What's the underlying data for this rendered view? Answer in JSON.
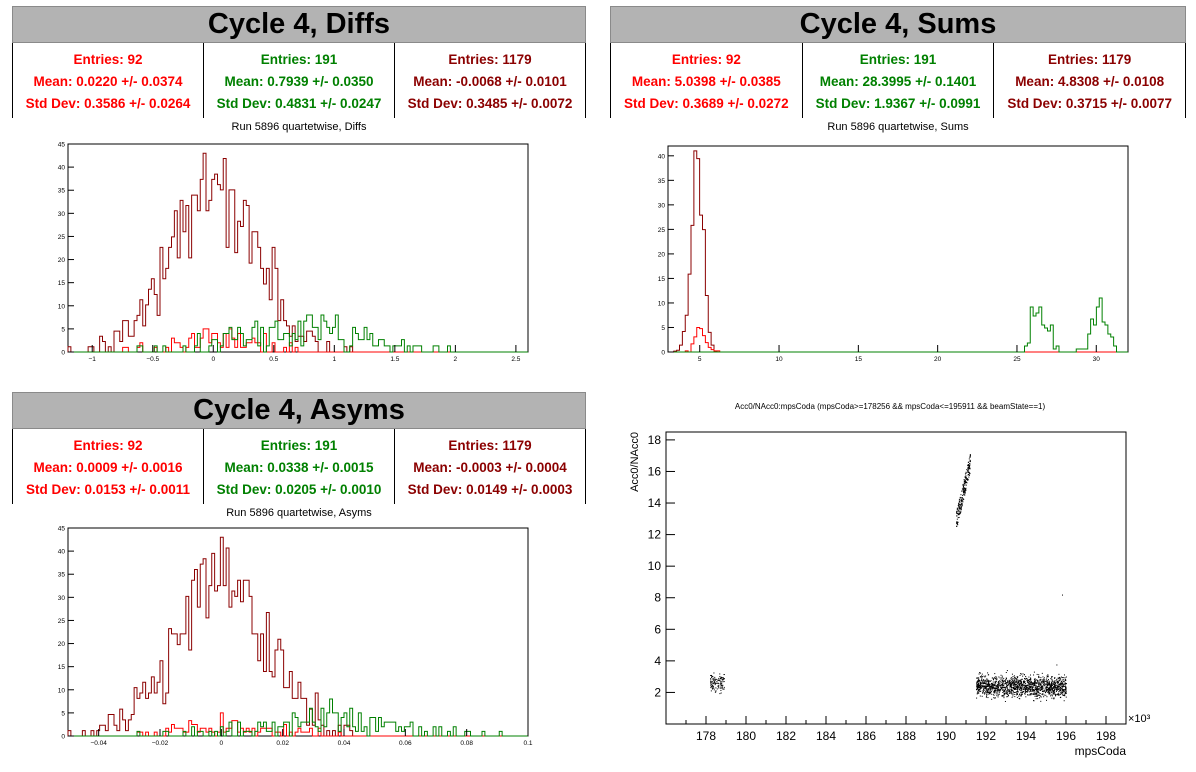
{
  "colors": {
    "red": "#ff0000",
    "green": "#008000",
    "darkred": "#8b0000"
  },
  "panels": [
    {
      "id": "diffs",
      "title": "Cycle 4, Diffs",
      "subtitle": "Run 5896 quartetwise, Diffs",
      "stats": [
        {
          "color": "#ff0000",
          "entries": "Entries: 92",
          "mean": "Mean: 0.0220 +/- 0.0374",
          "std": "Std Dev: 0.3586 +/- 0.0264"
        },
        {
          "color": "#008000",
          "entries": "Entries: 191",
          "mean": "Mean: 0.7939 +/- 0.0350",
          "std": "Std Dev: 0.4831 +/- 0.0247"
        },
        {
          "color": "#8b0000",
          "entries": "Entries: 1179",
          "mean": "Mean: -0.0068 +/- 0.0101",
          "std": "Std Dev: 0.3485 +/- 0.0072"
        }
      ]
    },
    {
      "id": "sums",
      "title": "Cycle 4, Sums",
      "subtitle": "Run 5896 quartetwise, Sums",
      "stats": [
        {
          "color": "#ff0000",
          "entries": "Entries: 92",
          "mean": "Mean: 5.0398 +/- 0.0385",
          "std": "Std Dev: 0.3689 +/- 0.0272"
        },
        {
          "color": "#008000",
          "entries": "Entries: 191",
          "mean": "Mean: 28.3995 +/- 0.1401",
          "std": "Std Dev: 1.9367 +/- 0.0991"
        },
        {
          "color": "#8b0000",
          "entries": "Entries: 1179",
          "mean": "Mean: 4.8308 +/- 0.0108",
          "std": "Std Dev: 0.3715 +/- 0.0077"
        }
      ]
    },
    {
      "id": "asyms",
      "title": "Cycle 4, Asyms",
      "subtitle": "Run 5896 quartetwise, Asyms",
      "stats": [
        {
          "color": "#ff0000",
          "entries": "Entries: 92",
          "mean": "Mean: 0.0009 +/- 0.0016",
          "std": "Std Dev: 0.0153 +/- 0.0011"
        },
        {
          "color": "#008000",
          "entries": "Entries: 191",
          "mean": "Mean: 0.0338 +/- 0.0015",
          "std": "Std Dev: 0.0205 +/- 0.0010"
        },
        {
          "color": "#8b0000",
          "entries": "Entries: 1179",
          "mean": "Mean: -0.0003 +/- 0.0004",
          "std": "Std Dev: 0.0149 +/- 0.0003"
        }
      ]
    }
  ],
  "scatter_title": "Acc0/NAcc0:mpsCoda (mpsCoda>=178256 && mpsCoda<=195911 && beamState==1)",
  "chart_data": [
    {
      "id": "diffs",
      "type": "histogram",
      "xlim": [
        -1.2,
        2.6
      ],
      "ylim": [
        0,
        45
      ],
      "xticks": [
        -1,
        -0.5,
        0,
        0.5,
        1,
        1.5,
        2,
        2.5
      ],
      "xtick_labels": [
        "−1",
        "−0.5",
        "0",
        "0.5",
        "1",
        "1.5",
        "2",
        "2.5"
      ],
      "yticks": [
        0,
        5,
        10,
        15,
        20,
        25,
        30,
        35,
        40,
        45
      ],
      "series": [
        {
          "color": "#8b0000",
          "count": 1179,
          "mean": -0.0068,
          "std": 0.3485,
          "peak": 43
        },
        {
          "color": "#ff0000",
          "count": 92,
          "mean": 0.022,
          "std": 0.3586,
          "peak": 5
        },
        {
          "color": "#008000",
          "count": 191,
          "mean": 0.7939,
          "std": 0.4831,
          "peak": 8
        }
      ]
    },
    {
      "id": "sums",
      "type": "histogram",
      "xlim": [
        3,
        32
      ],
      "ylim": [
        0,
        42
      ],
      "xticks": [
        5,
        10,
        15,
        20,
        25,
        30
      ],
      "xtick_labels": [
        "5",
        "10",
        "15",
        "20",
        "25",
        "30"
      ],
      "yticks": [
        0,
        5,
        10,
        15,
        20,
        25,
        30,
        35,
        40
      ],
      "series": [
        {
          "color": "#8b0000",
          "count": 1179,
          "mean": 4.8308,
          "std": 0.3715,
          "peak": 41
        },
        {
          "color": "#ff0000",
          "count": 92,
          "mean": 5.0398,
          "std": 0.3689,
          "peak": 5
        },
        {
          "color": "#008000",
          "count": 191,
          "mean": 28.3995,
          "std": 1.9367,
          "peak": 11,
          "clusters": [
            26.5,
            30.2
          ]
        }
      ]
    },
    {
      "id": "asyms",
      "type": "histogram",
      "xlim": [
        -0.05,
        0.1
      ],
      "ylim": [
        0,
        45
      ],
      "xticks": [
        -0.04,
        -0.02,
        0,
        0.02,
        0.04,
        0.06,
        0.08,
        0.1
      ],
      "xtick_labels": [
        "−0.04",
        "−0.02",
        "0",
        "0.02",
        "0.04",
        "0.06",
        "0.08",
        "0.1"
      ],
      "yticks": [
        0,
        5,
        10,
        15,
        20,
        25,
        30,
        35,
        40,
        45
      ],
      "series": [
        {
          "color": "#8b0000",
          "count": 1179,
          "mean": -0.0003,
          "std": 0.0149,
          "peak": 43
        },
        {
          "color": "#ff0000",
          "count": 92,
          "mean": 0.0009,
          "std": 0.0153,
          "peak": 5
        },
        {
          "color": "#008000",
          "count": 191,
          "mean": 0.0338,
          "std": 0.0205,
          "peak": 8
        }
      ]
    },
    {
      "id": "scatter",
      "type": "scatter",
      "xlabel": "mpsCoda",
      "ylabel": "Acc0/NAcc0",
      "x_multiplier_label": "×10³",
      "xlim": [
        176,
        199
      ],
      "ylim": [
        0,
        18.5
      ],
      "xticks": [
        178,
        180,
        182,
        184,
        186,
        188,
        190,
        192,
        194,
        196,
        198
      ],
      "yticks": [
        2,
        4,
        6,
        8,
        10,
        12,
        14,
        16,
        18
      ],
      "clusters": [
        {
          "x_range": [
            178.2,
            178.9
          ],
          "y_range": [
            1.9,
            3.4
          ],
          "points": 120
        },
        {
          "x_range": [
            190.5,
            191.2
          ],
          "y_range": [
            12.3,
            17.0
          ],
          "points": 230
        },
        {
          "x_range": [
            191.5,
            196.0
          ],
          "y_range": [
            1.6,
            3.2
          ],
          "points": 1500
        }
      ],
      "outliers": [
        {
          "x": 195.8,
          "y": 8.2
        }
      ]
    }
  ]
}
